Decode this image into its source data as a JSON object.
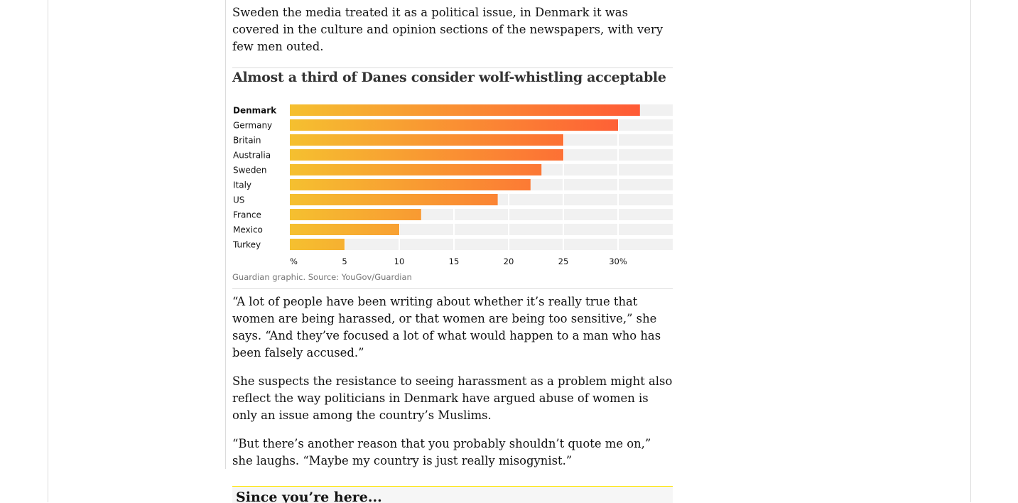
{
  "article": {
    "paragraph_top": "Andreasson’s research on the #MeToo movement has found that while in Sweden the media treated it as a political issue, in Denmark it was covered in the culture and opinion sections of the newspapers, with very few men outed.",
    "paragraph_quote": "“A lot of people have been writing about whether it’s really true that women are being harassed, or that women are being too sensitive,” she says. “And they’ve focused a lot of what would happen to a man who has been falsely accused.”",
    "paragraph_suspects": "She suspects the resistance to seeing harassment as a problem might also reflect the way politicians in Denmark have argued abuse of women is only an issue among the country’s Muslims.",
    "paragraph_laughs": "“But there’s another reason that you probably shouldn’t quote me on,” she laughs. “Maybe my country is just really misogynist.”"
  },
  "support": {
    "title": "Since you’re here..."
  },
  "chart_data": {
    "type": "bar",
    "orientation": "horizontal",
    "title": "Almost a third of Danes consider wolf-whistling acceptable",
    "categories": [
      "Denmark",
      "Germany",
      "Britain",
      "Australia",
      "Sweden",
      "Italy",
      "US",
      "France",
      "Mexico",
      "Turkey"
    ],
    "values": [
      32,
      30,
      25,
      25,
      23,
      22,
      19,
      12,
      10,
      5
    ],
    "highlight_category": "Denmark",
    "x_ticks": [
      0,
      5,
      10,
      15,
      20,
      25,
      30
    ],
    "x_tick_labels": [
      "%",
      "5",
      "10",
      "15",
      "20",
      "25",
      "30%"
    ],
    "xlim": [
      0,
      35
    ],
    "grid": true,
    "colors": {
      "bar_start": "#f5c030",
      "bar_end": "#ff5a36",
      "track": "#f1f1f1"
    },
    "source": "Guardian graphic. Source: YouGov/Guardian"
  }
}
